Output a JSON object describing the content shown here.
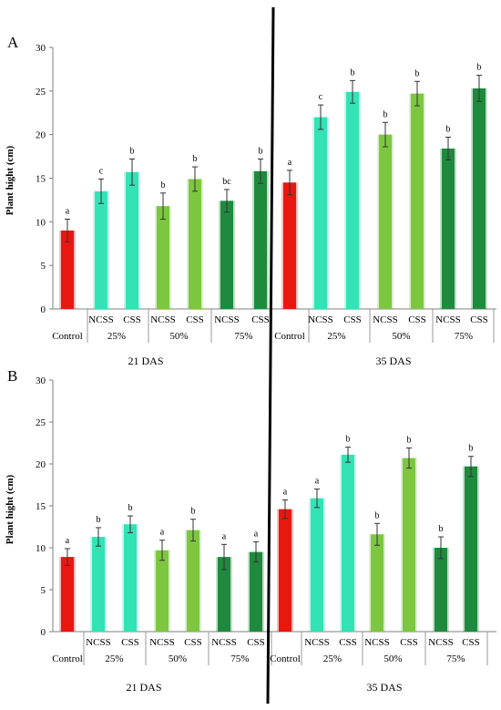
{
  "panels": [
    {
      "letter": "A",
      "ylabel": "Plant hight (cm)",
      "period_labels": [
        "21 DAS",
        "35 DAS"
      ]
    },
    {
      "letter": "B",
      "ylabel": "Plant hight (cm)",
      "period_labels": [
        "21 DAS",
        "35 DAS"
      ]
    }
  ],
  "colors": {
    "Control": "#e8170f",
    "NCSS25": "#33e3b5",
    "CSS25": "#33e3b5",
    "NCSS50": "#7dc740",
    "CSS50": "#7dc740",
    "NCSS75": "#1f8a3e",
    "CSS75": "#1f8a3e"
  },
  "chart_data": [
    {
      "type": "bar",
      "panel": "A",
      "ylabel": "Plant hight (cm)",
      "ylim": [
        0,
        30
      ],
      "yticks": [
        0,
        5,
        10,
        15,
        20,
        25,
        30
      ],
      "categories": [
        "Control",
        "NCSS",
        "CSS",
        "NCSS",
        "CSS",
        "NCSS",
        "CSS"
      ],
      "group_labels": [
        "Control",
        "25%",
        "50%",
        "75%"
      ],
      "series": [
        {
          "name": "21 DAS",
          "values": [
            9.0,
            13.5,
            15.7,
            11.8,
            14.9,
            12.4,
            15.8
          ],
          "errors": [
            1.3,
            1.4,
            1.5,
            1.5,
            1.4,
            1.3,
            1.4
          ],
          "letters": [
            "a",
            "c",
            "b",
            "b",
            "b",
            "bc",
            "b"
          ]
        },
        {
          "name": "35 DAS",
          "values": [
            14.5,
            22.0,
            24.9,
            20.0,
            24.7,
            18.4,
            25.3
          ],
          "errors": [
            1.4,
            1.4,
            1.3,
            1.4,
            1.4,
            1.3,
            1.5
          ],
          "letters": [
            "a",
            "c",
            "b",
            "b",
            "b",
            "b",
            "b"
          ]
        }
      ],
      "grid": false,
      "legend": "none"
    },
    {
      "type": "bar",
      "panel": "B",
      "ylabel": "Plant hight (cm)",
      "ylim": [
        0,
        30
      ],
      "yticks": [
        0,
        5,
        10,
        15,
        20,
        25,
        30
      ],
      "categories": [
        "Control",
        "NCSS",
        "CSS",
        "NCSS",
        "CSS",
        "NCSS",
        "CSS"
      ],
      "group_labels": [
        "Control",
        "25%",
        "50%",
        "75%"
      ],
      "series": [
        {
          "name": "21 DAS",
          "values": [
            8.9,
            11.3,
            12.8,
            9.7,
            12.1,
            8.9,
            9.5
          ],
          "errors": [
            1.0,
            1.1,
            1.0,
            1.2,
            1.3,
            1.5,
            1.2
          ],
          "letters": [
            "a",
            "b",
            "b",
            "a",
            "b",
            "a",
            "a"
          ]
        },
        {
          "name": "35 DAS",
          "values": [
            14.6,
            15.9,
            21.1,
            11.6,
            20.7,
            10.0,
            19.7
          ],
          "errors": [
            1.1,
            1.1,
            0.9,
            1.3,
            1.2,
            1.3,
            1.2
          ],
          "letters": [
            "a",
            "a",
            "b",
            "b",
            "b",
            "b",
            "b"
          ]
        }
      ],
      "grid": false,
      "legend": "none"
    }
  ]
}
